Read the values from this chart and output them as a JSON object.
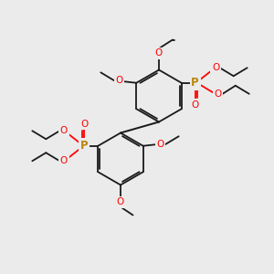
{
  "background_color": "#ebebeb",
  "bond_color": "#1a1a1a",
  "oxygen_color": "#ff0000",
  "phosphorus_color": "#b8860b",
  "lw": 1.3,
  "figsize": [
    3.0,
    3.0
  ],
  "dpi": 100,
  "xlim": [
    0,
    10
  ],
  "ylim": [
    0,
    10
  ]
}
